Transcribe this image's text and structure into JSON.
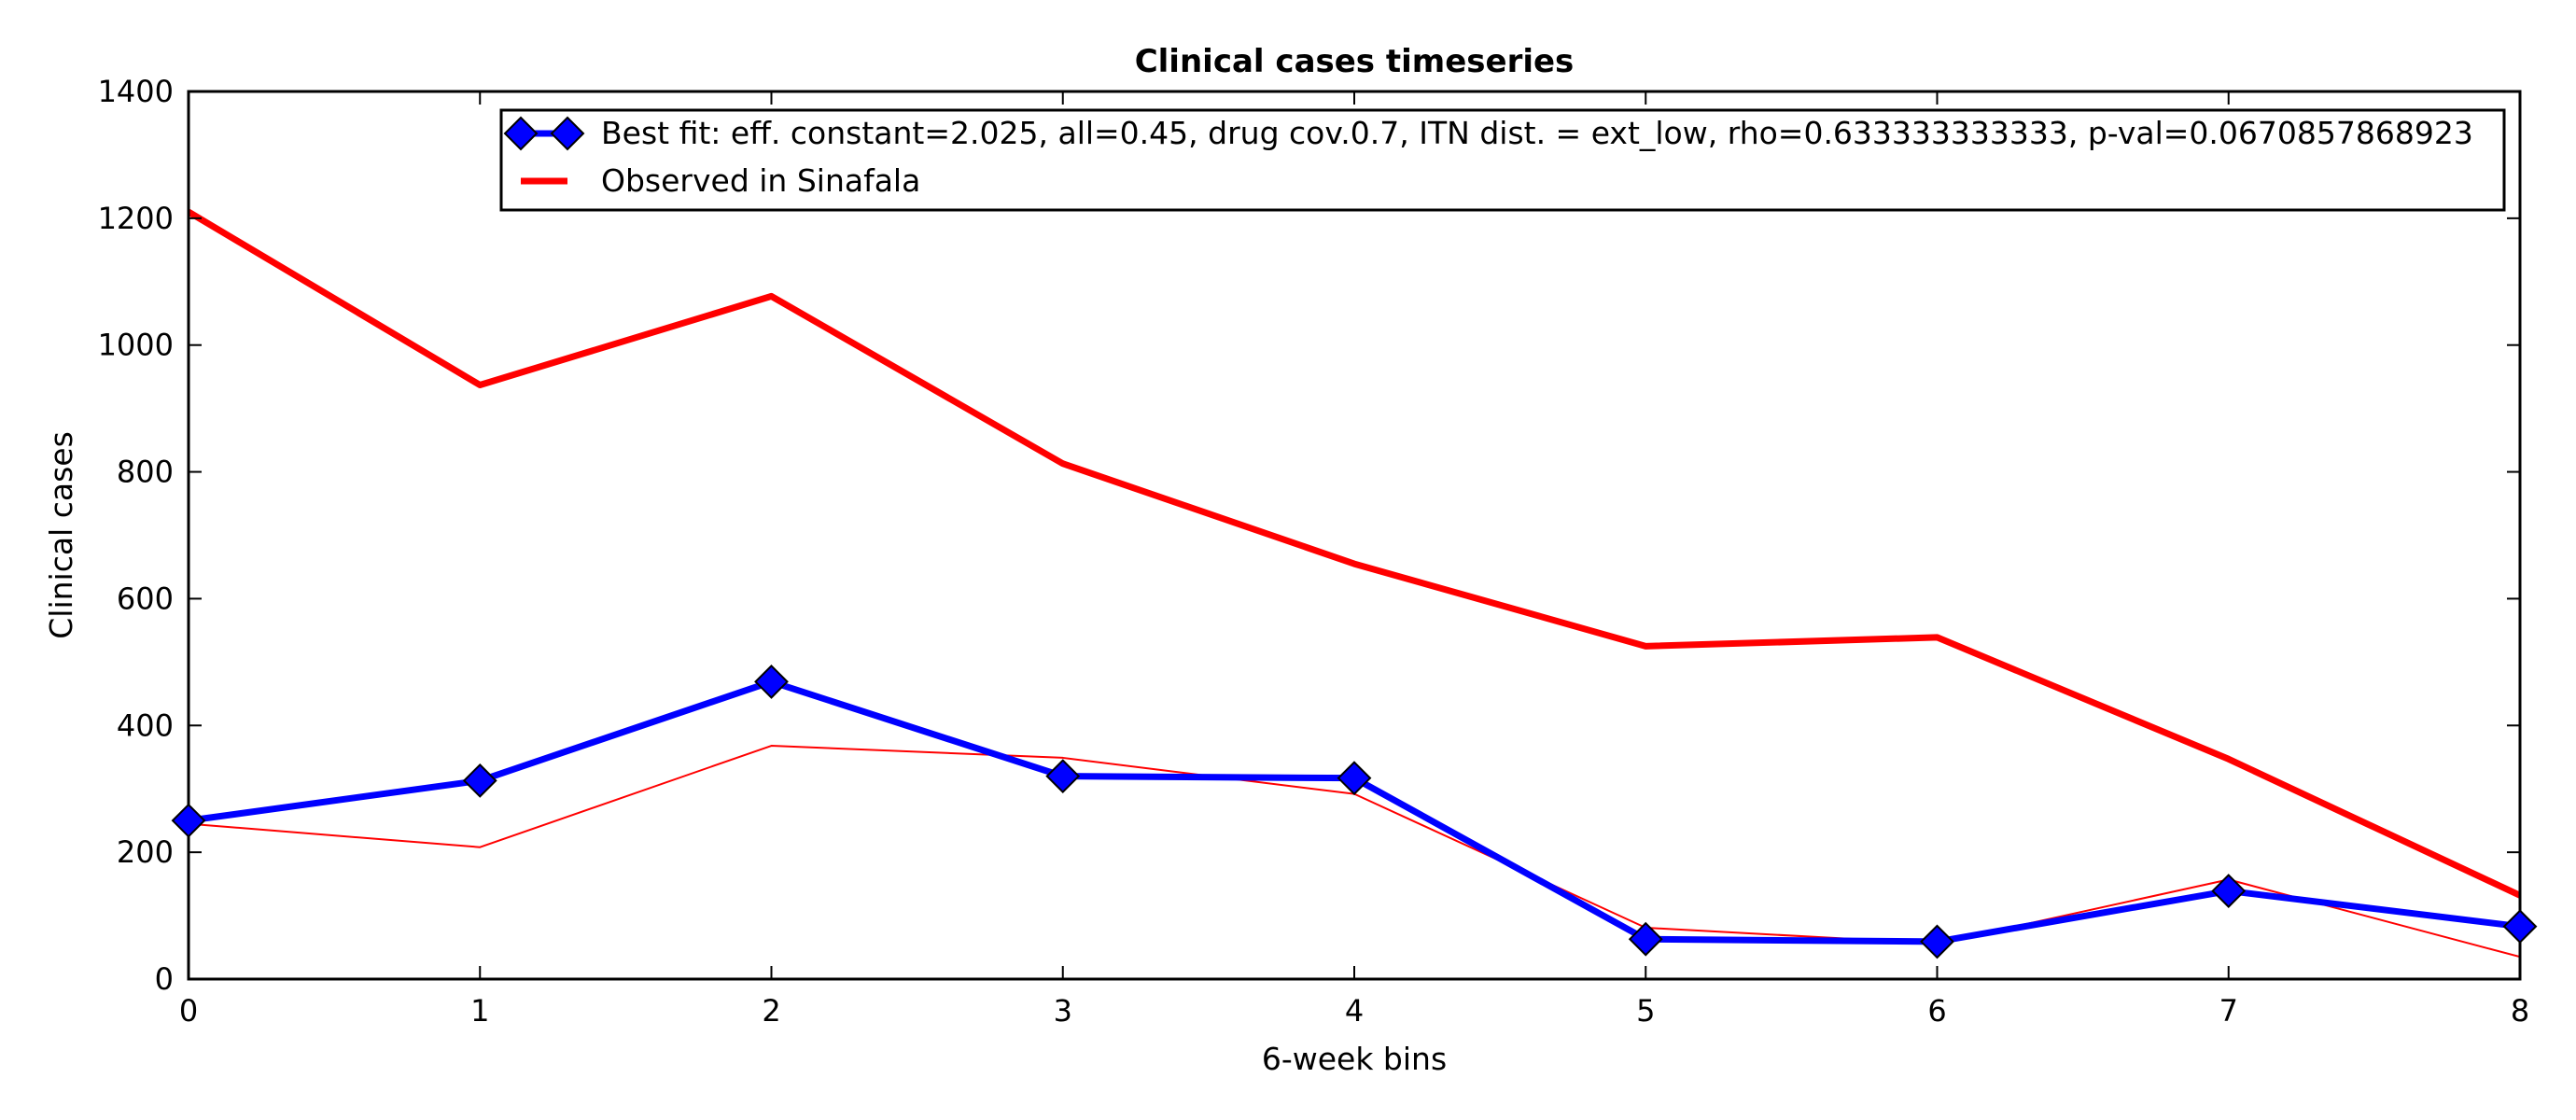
{
  "chart_data": {
    "type": "line",
    "title": "Clinical cases timeseries",
    "xlabel": "6-week bins",
    "ylabel": "Clinical cases",
    "xlim": [
      0,
      8
    ],
    "ylim": [
      0,
      1400
    ],
    "x_ticks": [
      0,
      1,
      2,
      3,
      4,
      5,
      6,
      7,
      8
    ],
    "y_ticks": [
      0,
      200,
      400,
      600,
      800,
      1000,
      1200,
      1400
    ],
    "grid": false,
    "legend_position": "top-right",
    "x": [
      0,
      1,
      2,
      3,
      4,
      5,
      6,
      7,
      8
    ],
    "series": [
      {
        "name": "Best fit: eff. constant=2.025, all=0.45, drug cov.0.7, ITN dist. = ext_low, rho=0.633333333333, p-val=0.0670857868923",
        "values": [
          250,
          313,
          469,
          320,
          317,
          63,
          59,
          139,
          83
        ],
        "color": "#0000ff",
        "marker": "diamond",
        "in_legend": true
      },
      {
        "name": "Observed in Sinafala",
        "values": [
          1210,
          937,
          1077,
          813,
          655,
          525,
          539,
          347,
          132
        ],
        "color": "#ff0000",
        "marker": "none",
        "in_legend": true
      },
      {
        "values": [
          245,
          208,
          368,
          349,
          292,
          81,
          56,
          157,
          35
        ],
        "color": "#ff0000",
        "marker": "none",
        "in_legend": false
      }
    ]
  }
}
